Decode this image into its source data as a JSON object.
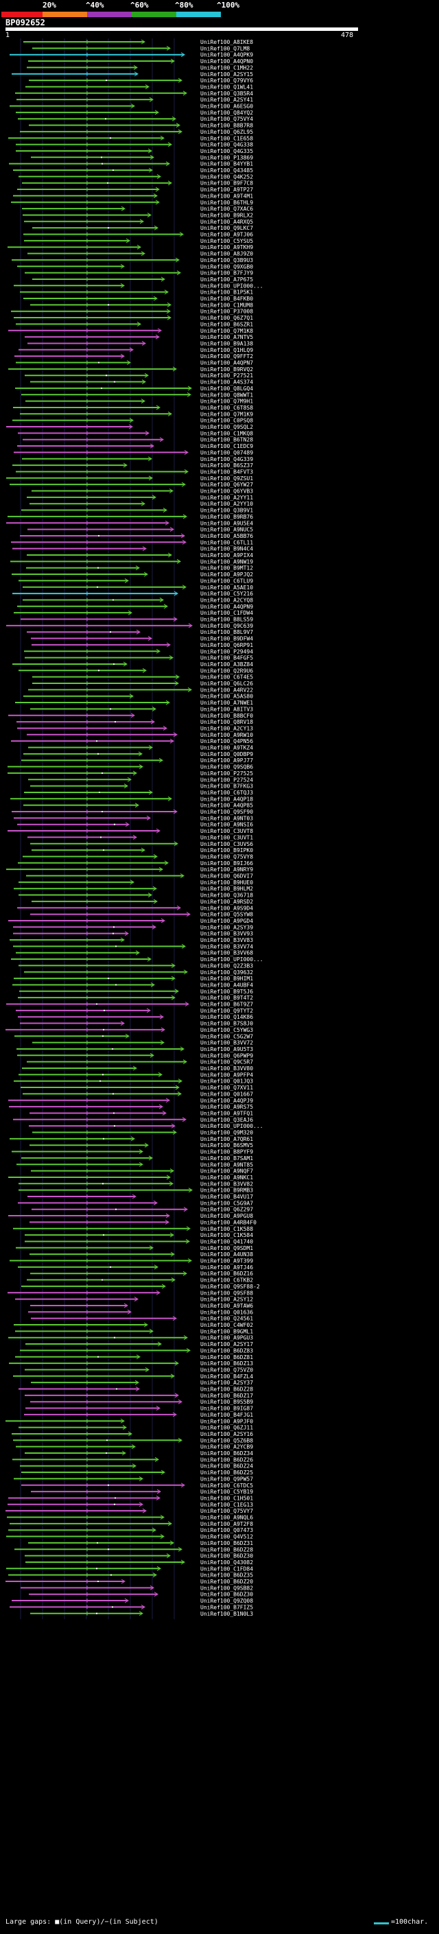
{
  "legend": {
    "labels": [
      "20%",
      "^40%",
      "^60%",
      "^80%",
      "^100%"
    ],
    "colors": [
      "#e8141c",
      "#f07c1c",
      "#9b36b7",
      "#2aa61c",
      "#27c5d8"
    ]
  },
  "query": {
    "name": "BP092652",
    "start": "1",
    "end": "478"
  },
  "colors": {
    "green": "#5ccc33",
    "magenta": "#cc55cc",
    "cyan": "#33d0e0",
    "grid": "#1c1c44"
  },
  "hits": [
    {
      "id": "UniRef100_A8IKE8"
    },
    {
      "id": "UniRef100_Q7LM8"
    },
    {
      "id": "UniRef100_A4QPK9"
    },
    {
      "id": "UniRef100_A4QPN0"
    },
    {
      "id": "UniRef100_C1MH22"
    },
    {
      "id": "UniRef100_A2SY15"
    },
    {
      "id": "UniRef100_Q79VY6"
    },
    {
      "id": "UniRef100_Q1WL41"
    },
    {
      "id": "UniRef100_Q3B5R4"
    },
    {
      "id": "UniRef100_A2SY41"
    },
    {
      "id": "UniRef100_A6ESG0"
    },
    {
      "id": "UniRef100_Q84YQ2"
    },
    {
      "id": "UniRef100_Q75VY4"
    },
    {
      "id": "UniRef100_B8B7R8"
    },
    {
      "id": "UniRef100_Q6ZL95"
    },
    {
      "id": "UniRef100_C1E658"
    },
    {
      "id": "UniRef100_Q4G338"
    },
    {
      "id": "UniRef100_Q4G335"
    },
    {
      "id": "UniRef100_P13869"
    },
    {
      "id": "UniRef100_B4YYB1"
    },
    {
      "id": "UniRef100_Q43485"
    },
    {
      "id": "UniRef100_Q4K252"
    },
    {
      "id": "UniRef100_B9F7C8"
    },
    {
      "id": "UniRef100_A9TP27"
    },
    {
      "id": "UniRef100_A9T4M1"
    },
    {
      "id": "UniRef100_B6THL9"
    },
    {
      "id": "UniRef100_Q7XAC6"
    },
    {
      "id": "UniRef100_B9RLX2"
    },
    {
      "id": "UniRef100_A4RXQ5"
    },
    {
      "id": "UniRef100_Q9LKC7"
    },
    {
      "id": "UniRef100_A9TJ06"
    },
    {
      "id": "UniRef100_C5YSU5"
    },
    {
      "id": "UniRef100_A9TKH9"
    },
    {
      "id": "UniRef100_A8J9Z0"
    },
    {
      "id": "UniRef100_Q3B9U3"
    },
    {
      "id": "UniRef100_Q9XGB0"
    },
    {
      "id": "UniRef100_B7FJY9"
    },
    {
      "id": "UniRef100_A7P675"
    },
    {
      "id": "UniRef100_UPI000..."
    },
    {
      "id": "UniRef100_B1P5K1"
    },
    {
      "id": "UniRef100_B4FKB0"
    },
    {
      "id": "UniRef100_C1MUM8"
    },
    {
      "id": "UniRef100_P37008"
    },
    {
      "id": "UniRef100_Q6Z7Q1"
    },
    {
      "id": "UniRef100_B6SZR1"
    },
    {
      "id": "UniRef100_Q7M1K8"
    },
    {
      "id": "UniRef100_A7NTV5"
    },
    {
      "id": "UniRef100_B9A138"
    },
    {
      "id": "UniRef100_Q1HLQ9"
    },
    {
      "id": "UniRef100_Q9FFT2"
    },
    {
      "id": "UniRef100_A4QPN7"
    },
    {
      "id": "UniRef100_B9RVQ2"
    },
    {
      "id": "UniRef100_P27521"
    },
    {
      "id": "UniRef100_A4S374"
    },
    {
      "id": "UniRef100_Q8LGQ4"
    },
    {
      "id": "UniRef100_Q8WWT1"
    },
    {
      "id": "UniRef100_Q7M9H1"
    },
    {
      "id": "UniRef100_C6T8S8"
    },
    {
      "id": "UniRef100_Q7M1K9"
    },
    {
      "id": "UniRef100_C0PSQ8"
    },
    {
      "id": "UniRef100_Q9SQL2"
    },
    {
      "id": "UniRef100_C1MKQ8"
    },
    {
      "id": "UniRef100_B6TN28"
    },
    {
      "id": "UniRef100_C1EDC9"
    },
    {
      "id": "UniRef100_Q07489"
    },
    {
      "id": "UniRef100_Q4G339"
    },
    {
      "id": "UniRef100_B6SZ37"
    },
    {
      "id": "UniRef100_B4FVT3"
    },
    {
      "id": "UniRef100_Q9ZSU1"
    },
    {
      "id": "UniRef100_Q6YW27"
    },
    {
      "id": "UniRef100_Q6YVB3"
    },
    {
      "id": "UniRef100_A2YY11"
    },
    {
      "id": "UniRef100_A2YY10"
    },
    {
      "id": "UniRef100_Q3B9V1"
    },
    {
      "id": "UniRef100_B9RB76"
    },
    {
      "id": "UniRef100_A9U5E4"
    },
    {
      "id": "UniRef100_A9NUC5"
    },
    {
      "id": "UniRef100_A5BB76"
    },
    {
      "id": "UniRef100_C6TL11"
    },
    {
      "id": "UniRef100_B9N4C4"
    },
    {
      "id": "UniRef100_A9PIX4"
    },
    {
      "id": "UniRef100_A9NW19"
    },
    {
      "id": "UniRef100_B9MT12"
    },
    {
      "id": "UniRef100_A9PJQ2"
    },
    {
      "id": "UniRef100_C6TLU9"
    },
    {
      "id": "UniRef100_A5AE10"
    },
    {
      "id": "UniRef100_C5Y216"
    },
    {
      "id": "UniRef100_A2CYQ8"
    },
    {
      "id": "UniRef100_A4QPN9"
    },
    {
      "id": "UniRef100_C1FDW4"
    },
    {
      "id": "UniRef100_B8LS59"
    },
    {
      "id": "UniRef100_Q9C639"
    },
    {
      "id": "UniRef100_B8L9V7"
    },
    {
      "id": "UniRef100_B9DFW4"
    },
    {
      "id": "UniRef100_Q6RP91"
    },
    {
      "id": "UniRef100_P29494"
    },
    {
      "id": "UniRef100_B4FGF5"
    },
    {
      "id": "UniRef100_A3BZ84"
    },
    {
      "id": "UniRef100_Q2R9U6"
    },
    {
      "id": "UniRef100_C6T4E5"
    },
    {
      "id": "UniRef100_Q6LC26"
    },
    {
      "id": "UniRef100_A4RV22"
    },
    {
      "id": "UniRef100_A5AS80"
    },
    {
      "id": "UniRef100_A7NWE1"
    },
    {
      "id": "UniRef100_A8ITV3"
    },
    {
      "id": "UniRef100_B8BCF0"
    },
    {
      "id": "UniRef100_Q8RV18"
    },
    {
      "id": "UniRef100_A2CY13"
    },
    {
      "id": "UniRef100_A9RW10"
    },
    {
      "id": "UniRef100_Q4PN56"
    },
    {
      "id": "UniRef100_A9TKZ4"
    },
    {
      "id": "UniRef100_Q0DBP9"
    },
    {
      "id": "UniRef100_A9PJ77"
    },
    {
      "id": "UniRef100_Q9SQB6"
    },
    {
      "id": "UniRef100_P27525"
    },
    {
      "id": "UniRef100_P27524"
    },
    {
      "id": "UniRef100_B7FKG3"
    },
    {
      "id": "UniRef100_C6TQJ3"
    },
    {
      "id": "UniRef100_A4QP18"
    },
    {
      "id": "UniRef100_A4QP85"
    },
    {
      "id": "UniRef100_Q9SF90"
    },
    {
      "id": "UniRef100_A9NT03"
    },
    {
      "id": "UniRef100_A9NSI6"
    },
    {
      "id": "UniRef100_C3UVT8"
    },
    {
      "id": "UniRef100_C3UVT1"
    },
    {
      "id": "UniRef100_C3UVS6"
    },
    {
      "id": "UniRef100_B9IPK0"
    },
    {
      "id": "UniRef100_Q75VY8"
    },
    {
      "id": "UniRef100_B9IJ66"
    },
    {
      "id": "UniRef100_A9NRY9"
    },
    {
      "id": "UniRef100_Q6DVI7"
    },
    {
      "id": "UniRef100_B9HUE0"
    },
    {
      "id": "UniRef100_B9HLM2"
    },
    {
      "id": "UniRef100_Q36718"
    },
    {
      "id": "UniRef100_A9RSD2"
    },
    {
      "id": "UniRef100_A9S9D4"
    },
    {
      "id": "UniRef100_Q5SYW8"
    },
    {
      "id": "UniRef100_A9PGD4"
    },
    {
      "id": "UniRef100_A2SY39"
    },
    {
      "id": "UniRef100_B3VV93"
    },
    {
      "id": "UniRef100_B3VV83"
    },
    {
      "id": "UniRef100_B3VV74"
    },
    {
      "id": "UniRef100_B3VV68"
    },
    {
      "id": "UniRef100_UPI000..."
    },
    {
      "id": "UniRef100_Q2Z3B3"
    },
    {
      "id": "UniRef100_Q39632"
    },
    {
      "id": "UniRef100_B9HIM1"
    },
    {
      "id": "UniRef100_A4UBF4"
    },
    {
      "id": "UniRef100_B9T5J6"
    },
    {
      "id": "UniRef100_B9T4T2"
    },
    {
      "id": "UniRef100_B6T9Z7"
    },
    {
      "id": "UniRef100_Q9TYT2"
    },
    {
      "id": "UniRef100_Q14K86"
    },
    {
      "id": "UniRef100_B7S8J0"
    },
    {
      "id": "UniRef100_C5YWG3"
    },
    {
      "id": "UniRef100_C5G2W7"
    },
    {
      "id": "UniRef100_B3VV72"
    },
    {
      "id": "UniRef100_A9U5T3"
    },
    {
      "id": "UniRef100_Q6PWP9"
    },
    {
      "id": "UniRef100_Q9C5R7"
    },
    {
      "id": "UniRef100_B3VV80"
    },
    {
      "id": "UniRef100_A9PFP4"
    },
    {
      "id": "UniRef100_Q01JQ3"
    },
    {
      "id": "UniRef100_Q7XV11"
    },
    {
      "id": "UniRef100_Q01667"
    },
    {
      "id": "UniRef100_A4QPJ9"
    },
    {
      "id": "UniRef100_A9RS75"
    },
    {
      "id": "UniRef100_A9TFQ1"
    },
    {
      "id": "UniRef100_Q3EAJ6"
    },
    {
      "id": "UniRef100_UPI000..."
    },
    {
      "id": "UniRef100_Q9M320"
    },
    {
      "id": "UniRef100_A7QR61"
    },
    {
      "id": "UniRef100_B6SMV5"
    },
    {
      "id": "UniRef100_B8PYF9"
    },
    {
      "id": "UniRef100_B7SAM1"
    },
    {
      "id": "UniRef100_A9NT85"
    },
    {
      "id": "UniRef100_A9NQF7"
    },
    {
      "id": "UniRef100_A9NKC1"
    },
    {
      "id": "UniRef100_B3VV82"
    },
    {
      "id": "UniRef100_B9RMB3"
    },
    {
      "id": "UniRef100_B4VU17"
    },
    {
      "id": "UniRef100_C5G9A7"
    },
    {
      "id": "UniRef100_Q6Z297"
    },
    {
      "id": "UniRef100_A9PGU8"
    },
    {
      "id": "UniRef100_A4RB4F0"
    },
    {
      "id": "UniRef100_C1K588"
    },
    {
      "id": "UniRef100_C1K584"
    },
    {
      "id": "UniRef100_Q41740"
    },
    {
      "id": "UniRef100_Q9SDM1"
    },
    {
      "id": "UniRef100_A4UN38"
    },
    {
      "id": "UniRef100_A9T399"
    },
    {
      "id": "UniRef100_A9TJ46"
    },
    {
      "id": "UniRef100_B6DZ16"
    },
    {
      "id": "UniRef100_C6TKB2"
    },
    {
      "id": "UniRef100_Q9SF88-2"
    },
    {
      "id": "UniRef100_Q9SF88"
    },
    {
      "id": "UniRef100_A2SY12"
    },
    {
      "id": "UniRef100_A9TAW6"
    },
    {
      "id": "UniRef100_Q01636"
    },
    {
      "id": "UniRef100_Q24561"
    },
    {
      "id": "UniRef100_C4WF02"
    },
    {
      "id": "UniRef100_B9GML1"
    },
    {
      "id": "UniRef100_A9PGU3"
    },
    {
      "id": "UniRef100_A2SY17"
    },
    {
      "id": "UniRef100_B6DZ83"
    },
    {
      "id": "UniRef100_B6DZ81"
    },
    {
      "id": "UniRef100_B6DZ13"
    },
    {
      "id": "UniRef100_Q75VZ0"
    },
    {
      "id": "UniRef100_B4FZL4"
    },
    {
      "id": "UniRef100_A2SY37"
    },
    {
      "id": "UniRef100_B6DZ28"
    },
    {
      "id": "UniRef100_B6DZ17"
    },
    {
      "id": "UniRef100_B9S5B9"
    },
    {
      "id": "UniRef100_B9IG87"
    },
    {
      "id": "UniRef100_B4FJG1"
    },
    {
      "id": "UniRef100_A9PJF0"
    },
    {
      "id": "UniRef100_Q6ZJ11"
    },
    {
      "id": "UniRef100_A2SY16"
    },
    {
      "id": "UniRef100_Q5Z6B8"
    },
    {
      "id": "UniRef100_A2YCB9"
    },
    {
      "id": "UniRef100_B6DZ34"
    },
    {
      "id": "UniRef100_B6DZ26"
    },
    {
      "id": "UniRef100_B6DZ24"
    },
    {
      "id": "UniRef100_B6DZ25"
    },
    {
      "id": "UniRef100_Q9PW57"
    },
    {
      "id": "UniRef100_C6TDC5"
    },
    {
      "id": "UniRef100_C5YB19"
    },
    {
      "id": "UniRef100_C1H501"
    },
    {
      "id": "UniRef100_C1EG13"
    },
    {
      "id": "UniRef100_Q75VY7"
    },
    {
      "id": "UniRef100_A9NQL6"
    },
    {
      "id": "UniRef100_A9T2F8"
    },
    {
      "id": "UniRef100_Q07473"
    },
    {
      "id": "UniRef100_Q4V512"
    },
    {
      "id": "UniRef100_B6DZ31"
    },
    {
      "id": "UniRef100_B6DZ28"
    },
    {
      "id": "UniRef100_B6DZ30"
    },
    {
      "id": "UniRef100_Q43082"
    },
    {
      "id": "UniRef100_C1FD84"
    },
    {
      "id": "UniRef100_B6DZ35"
    },
    {
      "id": "UniRef100_B6DZ20"
    },
    {
      "id": "UniRef100_Q9SB82"
    },
    {
      "id": "UniRef100_B6DZ30"
    },
    {
      "id": "UniRef100_Q9ZQ08"
    },
    {
      "id": "UniRef100_B7FIZ5"
    },
    {
      "id": "UniRef100_B1N0L3"
    }
  ],
  "footer": {
    "legend_text": "Large gaps: ■(in Query)/−(in Subject)",
    "scale_text": "=100char."
  }
}
